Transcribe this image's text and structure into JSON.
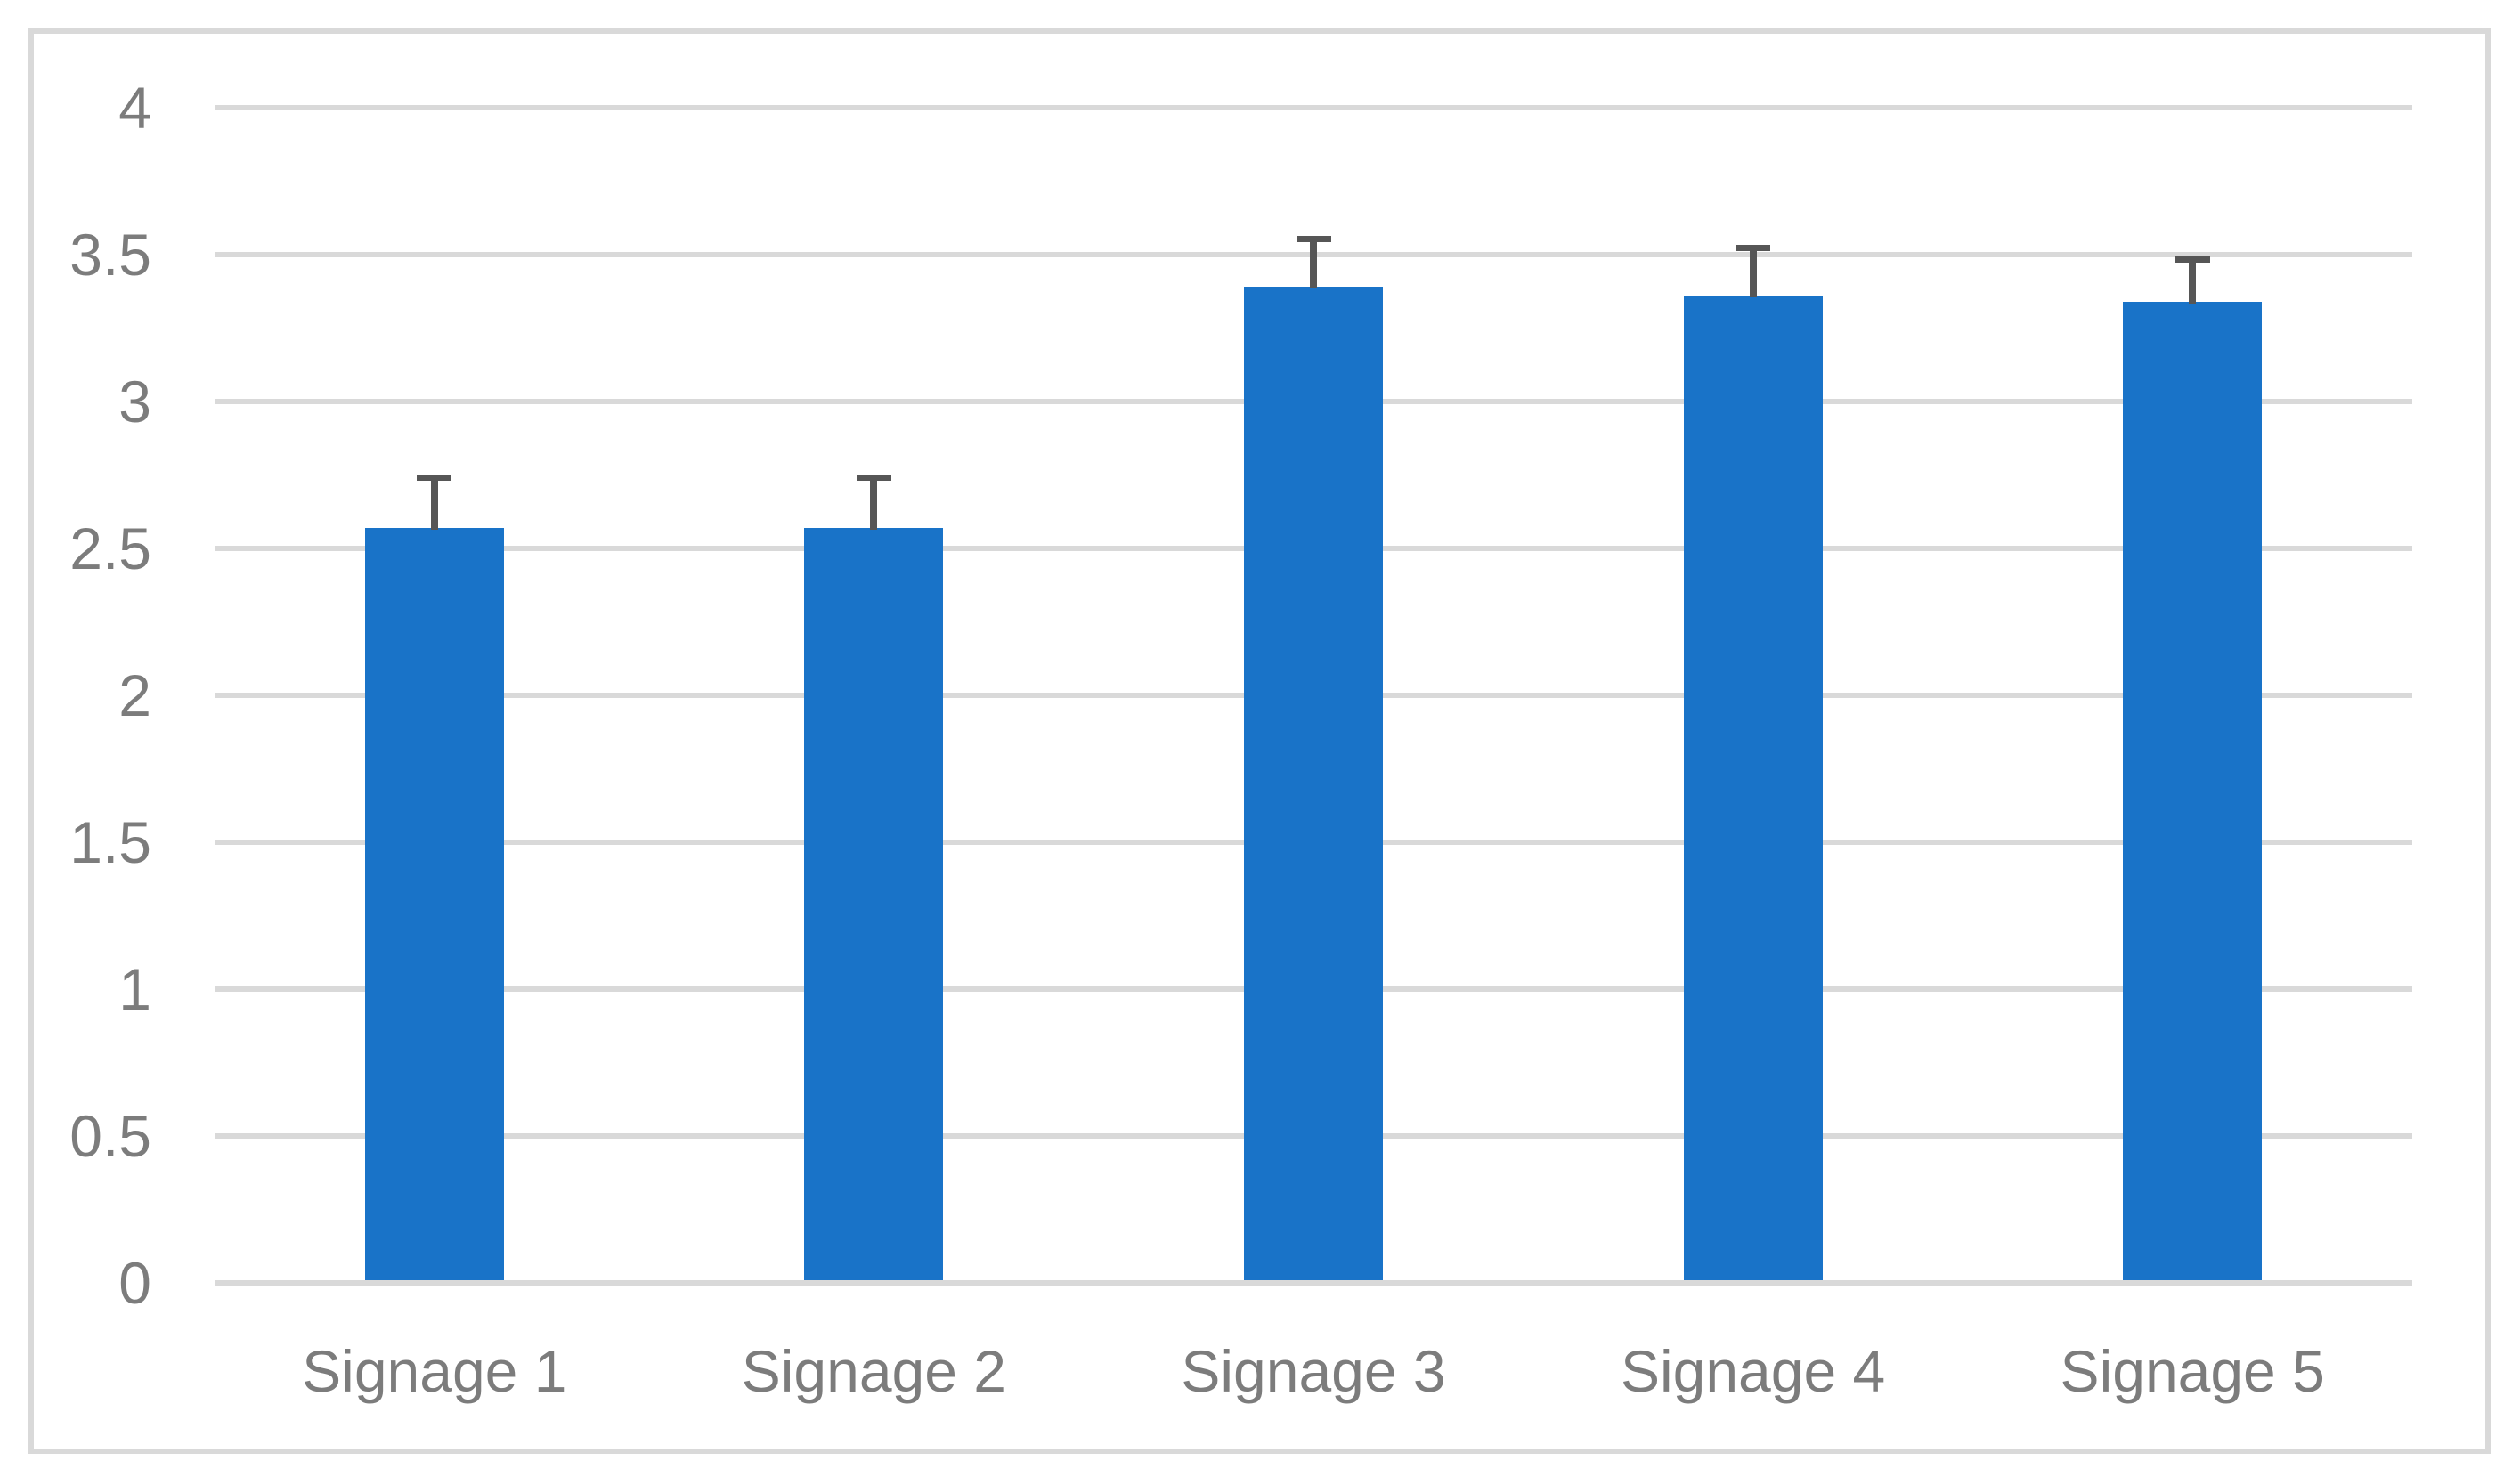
{
  "figure": {
    "background_color": "#FFFFFF",
    "border_color": "#D9D9D9"
  },
  "chart_data": {
    "type": "bar",
    "title": "",
    "xlabel": "",
    "ylabel": "",
    "categories": [
      "Signage 1",
      "Signage 2",
      "Signage 3",
      "Signage 4",
      "Signage 5"
    ],
    "values": [
      2.57,
      2.57,
      3.39,
      3.36,
      3.34
    ],
    "error_plus": [
      0.18,
      0.18,
      0.17,
      0.17,
      0.15
    ],
    "ylim": [
      0,
      4
    ],
    "ytick_step": 0.5,
    "ytick_labels": [
      "0",
      "0.5",
      "1",
      "1.5",
      "2",
      "2.5",
      "3",
      "3.5",
      "4"
    ],
    "grid": "horizontal",
    "legend_position": "none",
    "bar_color": "#1973C8",
    "error_bar_color": "#565656",
    "gridline_color": "#D9D9D9",
    "tick_label_color": "#7C7C7C"
  }
}
